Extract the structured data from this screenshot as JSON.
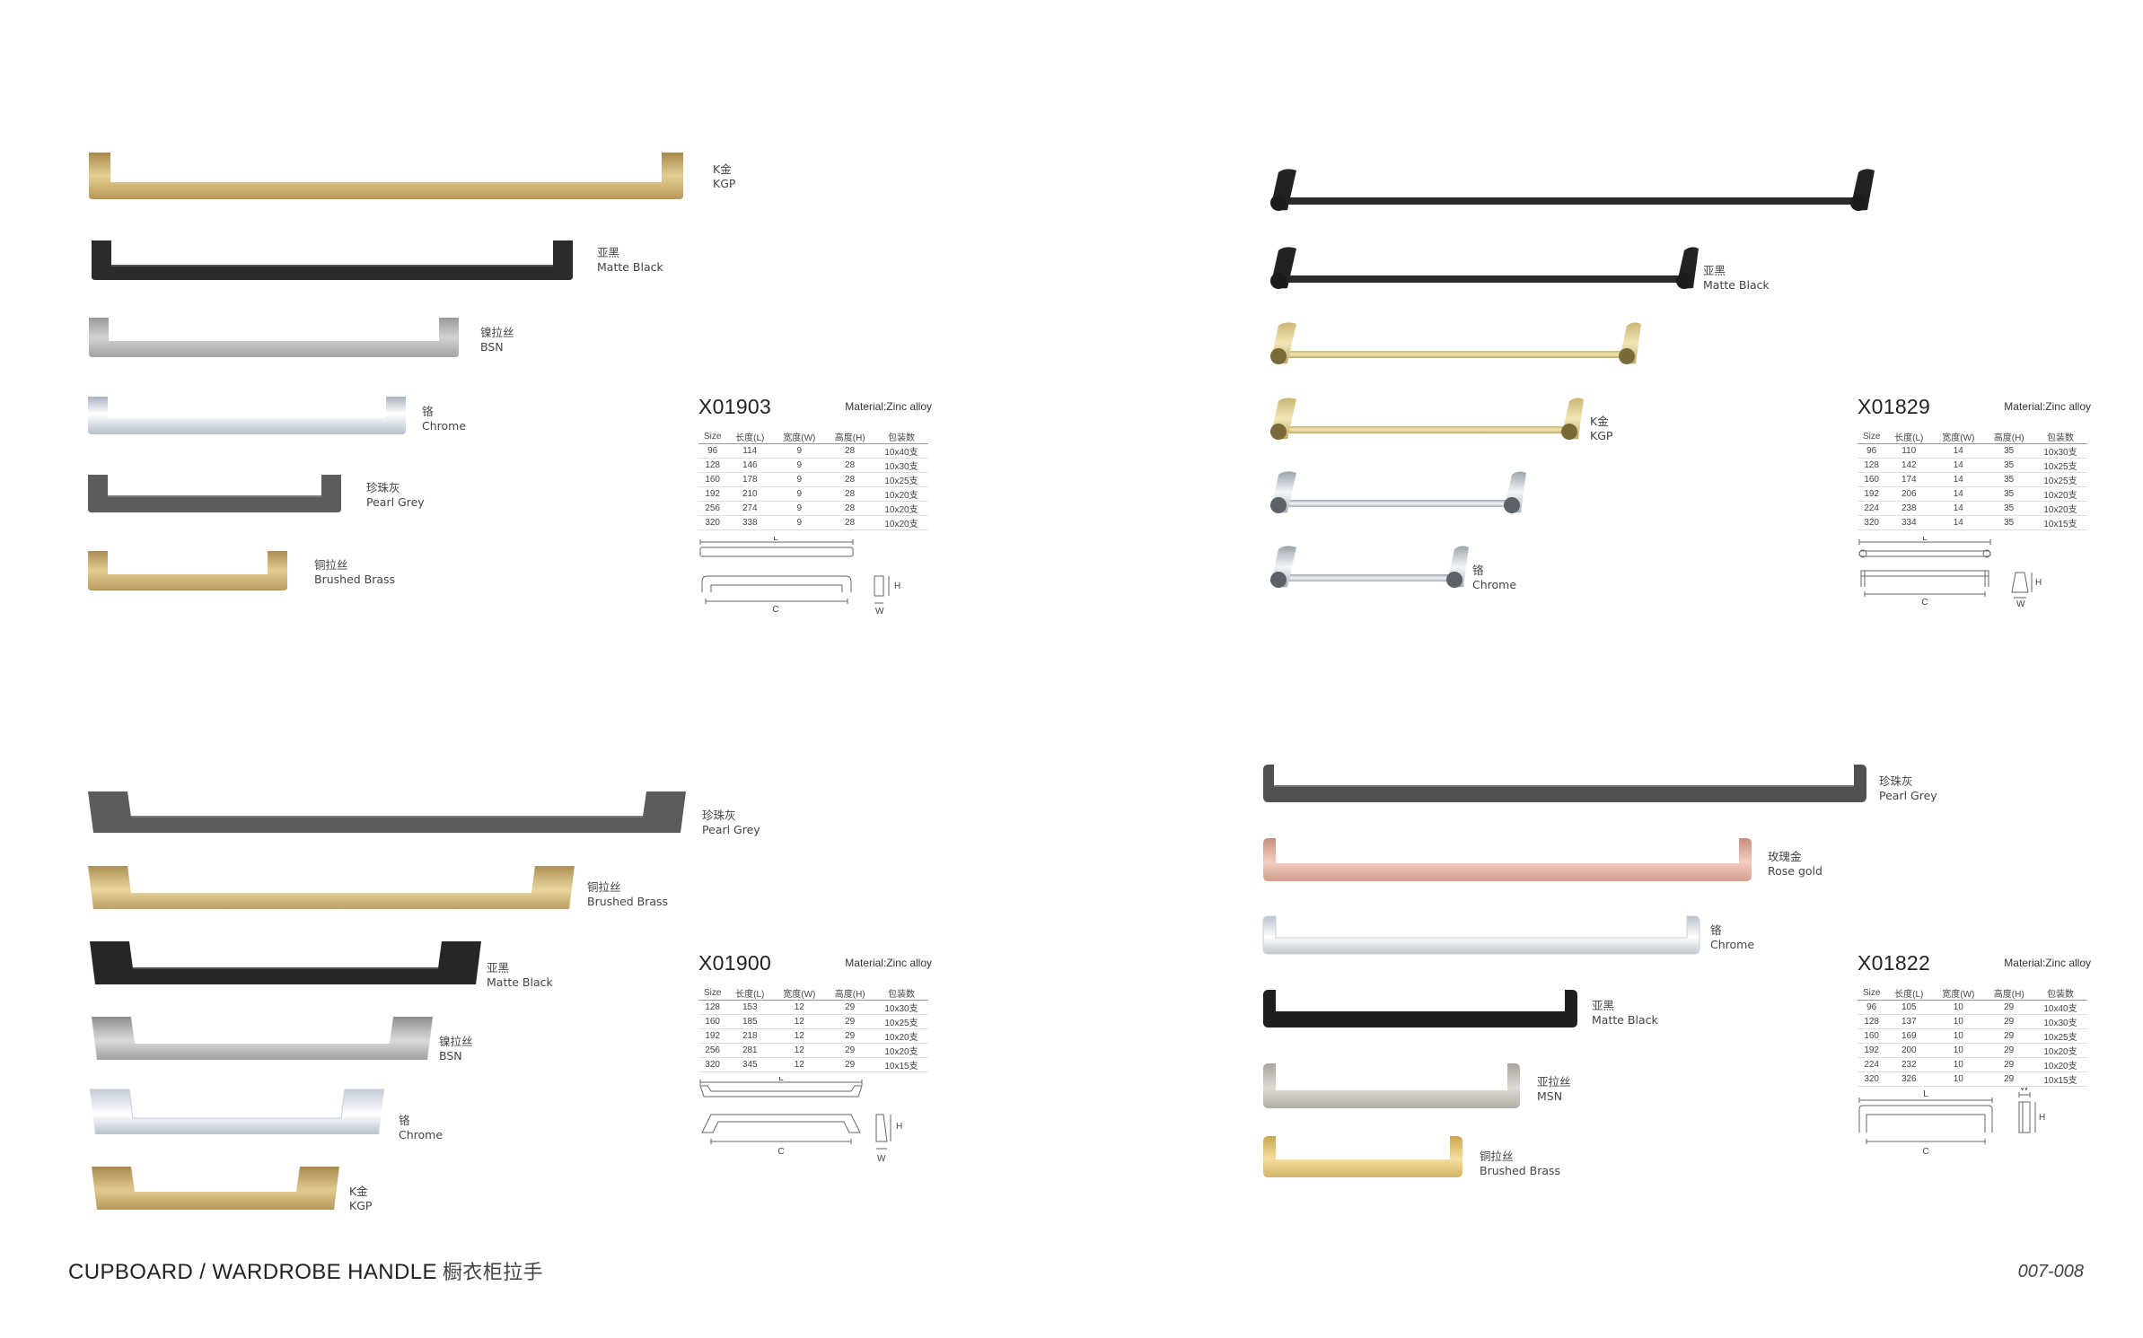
{
  "colors": {
    "KGP": "#c8aa6a",
    "MatteBlack": "#2b2b2b",
    "BSN": "#b7b7b7",
    "Chrome": "#dde3ea",
    "PearlGrey": "#5d5c5a",
    "BrushedBrass": "#c9ad72",
    "RoseGold": "#dba898",
    "MSN": "#c8c6bd",
    "GoldPolished": "#e2d49e"
  },
  "sections": [
    {
      "model": "X01903",
      "material": "Material:Zinc alloy",
      "headers": [
        "Size",
        "长度(L)",
        "宽度(W)",
        "高度(H)",
        "包装数"
      ],
      "rows": [
        [
          "96",
          "114",
          "9",
          "28",
          "10x40支"
        ],
        [
          "128",
          "146",
          "9",
          "28",
          "10x30支"
        ],
        [
          "160",
          "178",
          "9",
          "28",
          "10x25支"
        ],
        [
          "192",
          "210",
          "9",
          "28",
          "10x20支"
        ],
        [
          "256",
          "274",
          "9",
          "28",
          "10x20支"
        ],
        [
          "320",
          "338",
          "9",
          "28",
          "10x20支"
        ]
      ],
      "dims": [
        "L",
        "C",
        "H",
        "W"
      ],
      "finishes": [
        {
          "cn": "K金",
          "en": "KGP"
        },
        {
          "cn": "亚黑",
          "en": "Matte Black"
        },
        {
          "cn": "镍拉丝",
          "en": "BSN"
        },
        {
          "cn": "铬",
          "en": "Chrome"
        },
        {
          "cn": "珍珠灰",
          "en": "Pearl Grey"
        },
        {
          "cn": "铜拉丝",
          "en": "Brushed Brass"
        }
      ]
    },
    {
      "model": "X01829",
      "material": "Material:Zinc alloy",
      "headers": [
        "Size",
        "长度(L)",
        "宽度(W)",
        "高度(H)",
        "包装数"
      ],
      "rows": [
        [
          "96",
          "110",
          "14",
          "35",
          "10x30支"
        ],
        [
          "128",
          "142",
          "14",
          "35",
          "10x25支"
        ],
        [
          "160",
          "174",
          "14",
          "35",
          "10x25支"
        ],
        [
          "192",
          "206",
          "14",
          "35",
          "10x20支"
        ],
        [
          "224",
          "238",
          "14",
          "35",
          "10x20支"
        ],
        [
          "320",
          "334",
          "14",
          "35",
          "10x15支"
        ]
      ],
      "dims": [
        "L",
        "C",
        "H",
        "W"
      ],
      "finishes": [
        {
          "cn": "亚黑",
          "en": "Matte Black"
        },
        {
          "cn": "K金",
          "en": "KGP"
        },
        {
          "cn": "铬",
          "en": "Chrome"
        }
      ]
    },
    {
      "model": "X01900",
      "material": "Material:Zinc alloy",
      "headers": [
        "Size",
        "长度(L)",
        "宽度(W)",
        "高度(H)",
        "包装数"
      ],
      "rows": [
        [
          "128",
          "153",
          "12",
          "29",
          "10x30支"
        ],
        [
          "160",
          "185",
          "12",
          "29",
          "10x25支"
        ],
        [
          "192",
          "218",
          "12",
          "29",
          "10x20支"
        ],
        [
          "256",
          "281",
          "12",
          "29",
          "10x20支"
        ],
        [
          "320",
          "345",
          "12",
          "29",
          "10x15支"
        ]
      ],
      "dims": [
        "L",
        "C",
        "H",
        "W"
      ],
      "finishes": [
        {
          "cn": "珍珠灰",
          "en": "Pearl Grey"
        },
        {
          "cn": "铜拉丝",
          "en": "Brushed Brass"
        },
        {
          "cn": "亚黑",
          "en": "Matte Black"
        },
        {
          "cn": "镍拉丝",
          "en": "BSN"
        },
        {
          "cn": "铬",
          "en": "Chrome"
        },
        {
          "cn": "K金",
          "en": "KGP"
        }
      ]
    },
    {
      "model": "X01822",
      "material": "Material:Zinc alloy",
      "headers": [
        "Size",
        "长度(L)",
        "宽度(W)",
        "高度(H)",
        "包装数"
      ],
      "rows": [
        [
          "96",
          "105",
          "10",
          "29",
          "10x40支"
        ],
        [
          "128",
          "137",
          "10",
          "29",
          "10x30支"
        ],
        [
          "160",
          "169",
          "10",
          "29",
          "10x25支"
        ],
        [
          "192",
          "200",
          "10",
          "29",
          "10x20支"
        ],
        [
          "224",
          "232",
          "10",
          "29",
          "10x20支"
        ],
        [
          "320",
          "326",
          "10",
          "29",
          "10x15支"
        ]
      ],
      "dims": [
        "L",
        "C",
        "H",
        "W"
      ],
      "finishes": [
        {
          "cn": "珍珠灰",
          "en": "Pearl Grey"
        },
        {
          "cn": "玫瑰金",
          "en": "Rose gold"
        },
        {
          "cn": "铬",
          "en": "Chrome"
        },
        {
          "cn": "亚黑",
          "en": "Matte Black"
        },
        {
          "cn": "亚拉丝",
          "en": "MSN"
        },
        {
          "cn": "铜拉丝",
          "en": "Brushed Brass"
        }
      ]
    }
  ],
  "footer": {
    "title": "CUPBOARD / WARDROBE HANDLE",
    "title_cn": "橱衣柜拉手",
    "page": "007-008"
  }
}
